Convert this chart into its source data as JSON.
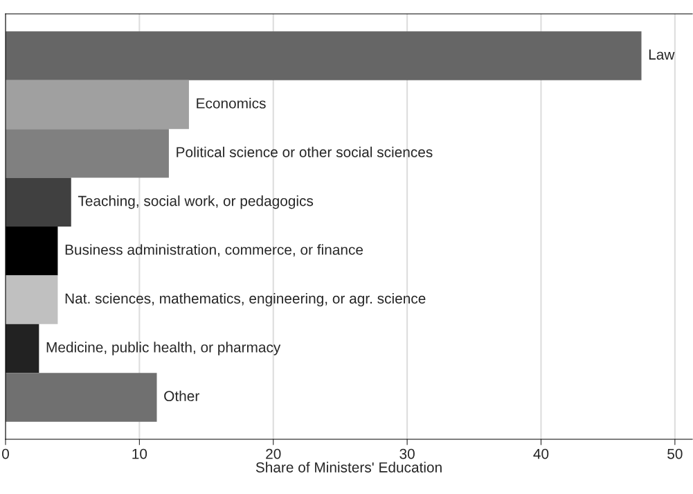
{
  "chart_data": {
    "type": "bar",
    "orientation": "horizontal",
    "xlabel": "Share of Ministers' Education",
    "categories": [
      "Law",
      "Economics",
      "Political science or other social sciences",
      "Teaching, social work, or pedagogics",
      "Business administration, commerce, or finance",
      "Nat. sciences, mathematics, engineering, or agr. science",
      "Medicine, public health, or pharmacy",
      "Other"
    ],
    "values": [
      47.5,
      13.7,
      12.2,
      4.9,
      3.9,
      3.9,
      2.5,
      11.3
    ],
    "colors": [
      "#666666",
      "#a0a0a0",
      "#808080",
      "#404040",
      "#000000",
      "#c0c0c0",
      "#222222",
      "#707070"
    ],
    "xlim": [
      0,
      51.3
    ],
    "xticks": [
      0,
      10,
      20,
      30,
      40,
      50
    ],
    "grid": "x",
    "tick_labels": "x"
  }
}
